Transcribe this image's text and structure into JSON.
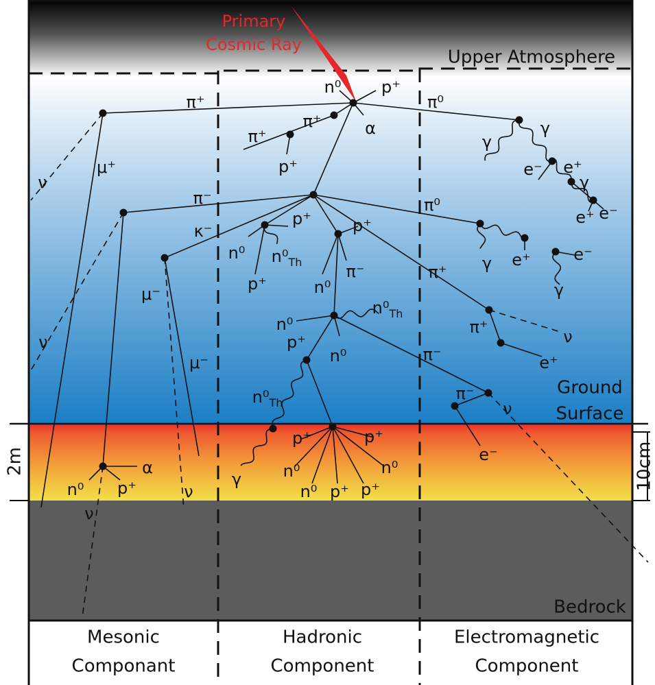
{
  "cosmic_ray": {
    "lines": [
      "Primary",
      "Cosmic Ray"
    ]
  },
  "layers": {
    "upper_atmosphere": "Upper Atmosphere",
    "ground_surface": [
      "Ground",
      "Surface"
    ],
    "bedrock": "Bedrock"
  },
  "scale": {
    "left": "2m",
    "right": "10cm"
  },
  "components": [
    {
      "lines": [
        "Mesonic",
        "Componant"
      ]
    },
    {
      "lines": [
        "Hadronic",
        "Component"
      ]
    },
    {
      "lines": [
        "Electromagnetic",
        "Component"
      ]
    }
  ],
  "particles": [
    {
      "text": "π⁺"
    },
    {
      "text": "n⁰"
    },
    {
      "text": "p⁺"
    },
    {
      "text": "π⁺"
    },
    {
      "text": "α"
    },
    {
      "text": "π⁰"
    },
    {
      "text": "π⁺"
    },
    {
      "text": "p⁺"
    },
    {
      "text": "γ"
    },
    {
      "text": "γ"
    },
    {
      "text": "ν"
    },
    {
      "text": "μ⁺"
    },
    {
      "text": "e⁻"
    },
    {
      "text": "e⁺"
    },
    {
      "text": "γ"
    },
    {
      "text": "π⁻"
    },
    {
      "text": "π⁰"
    },
    {
      "text": "e⁺"
    },
    {
      "text": "e⁻"
    },
    {
      "text": "κ⁻"
    },
    {
      "text": "p⁺"
    },
    {
      "text": "p⁺"
    },
    {
      "text": "n⁰"
    },
    {
      "text": "n⁰",
      "sub": "Th"
    },
    {
      "text": "γ"
    },
    {
      "text": "e⁺"
    },
    {
      "text": "e⁻"
    },
    {
      "text": "μ⁻"
    },
    {
      "text": "p⁺"
    },
    {
      "text": "n⁰"
    },
    {
      "text": "π⁻"
    },
    {
      "text": "π⁺"
    },
    {
      "text": "γ"
    },
    {
      "text": "n⁰",
      "sub": "Th"
    },
    {
      "text": "n⁰"
    },
    {
      "text": "π⁺"
    },
    {
      "text": "ν"
    },
    {
      "text": "p⁺"
    },
    {
      "text": "n⁰"
    },
    {
      "text": "π⁻"
    },
    {
      "text": "ν"
    },
    {
      "text": "μ⁻"
    },
    {
      "text": "e⁺"
    },
    {
      "text": "n⁰",
      "sub": "Th"
    },
    {
      "text": "π⁻"
    },
    {
      "text": "ν"
    },
    {
      "text": "p⁺"
    },
    {
      "text": "p⁺"
    },
    {
      "text": "γ"
    },
    {
      "text": "n⁰"
    },
    {
      "text": "n⁰"
    },
    {
      "text": "n⁰"
    },
    {
      "text": "p⁺"
    },
    {
      "text": "p⁺"
    },
    {
      "text": "α"
    },
    {
      "text": "n⁰"
    },
    {
      "text": "p⁺"
    },
    {
      "text": "ν"
    },
    {
      "text": "ν"
    },
    {
      "text": "e⁻"
    }
  ]
}
